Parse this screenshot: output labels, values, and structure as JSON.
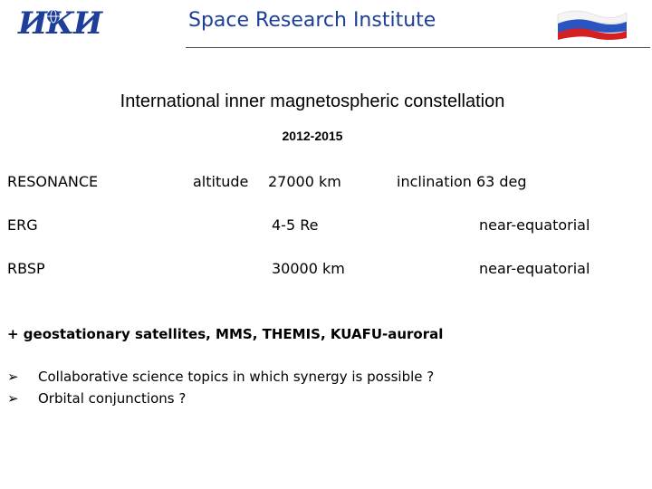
{
  "header": {
    "logo": "ИКИ",
    "title": "Space Research Institute"
  },
  "title": "International inner magnetospheric constellation",
  "subtitle": "2012-2015",
  "missions": [
    {
      "name": "RESONANCE",
      "params": [
        "altitude",
        "27000 km",
        "inclination  63 deg"
      ]
    },
    {
      "name": "ERG",
      "params": [
        "4-5 Re",
        "near-equatorial"
      ]
    },
    {
      "name": "RBSP",
      "params": [
        "30000 km",
        "near-equatorial"
      ]
    }
  ],
  "note": "+ geostationary satellites, MMS, THEMIS, KUAFU-auroral",
  "bullets": [
    "Collaborative science topics in which synergy is possible ?",
    "Orbital conjunctions ?"
  ]
}
